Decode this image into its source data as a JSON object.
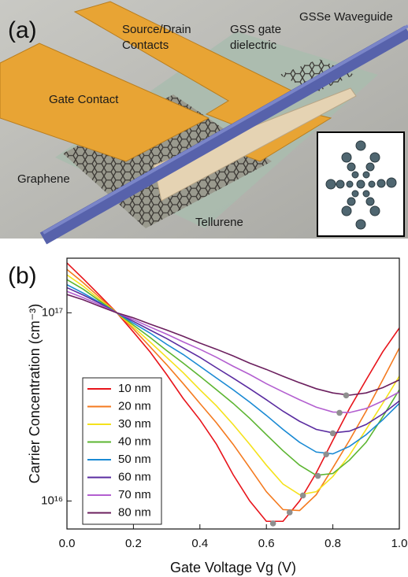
{
  "panel_a": {
    "label": "(a)",
    "source_drain": [
      "Source/Drain",
      "Contacts"
    ],
    "dielectric": [
      "GSS gate",
      "dielectric"
    ],
    "waveguide": "GSSe Waveguide",
    "gate_contact": "Gate Contact",
    "graphene": "Graphene",
    "tellurene": "Tellurene"
  },
  "chart_data": {
    "type": "line",
    "panel_label": "(b)",
    "x_label": "Gate Voltage Vg (V)",
    "y_label": "Carrier Concentration (cm⁻³)",
    "log_y": true,
    "xlim": [
      0,
      1
    ],
    "ylim": [
      7100000000000000.0,
      1.95e+17
    ],
    "xticks": [
      {
        "value": 0,
        "label": "0.0"
      },
      0.2,
      0.4,
      0.6,
      0.8,
      {
        "value": 1,
        "label": "1.0"
      }
    ],
    "yticks": [
      {
        "value": 1e+16,
        "label": "10¹⁶"
      },
      {
        "value": 1e+17,
        "label": "10¹⁷"
      }
    ],
    "x": [
      0,
      0.05,
      0.1,
      0.15,
      0.2,
      0.25,
      0.3,
      0.35,
      0.4,
      0.45,
      0.5,
      0.55,
      0.6,
      0.65,
      0.7,
      0.75,
      0.8,
      0.85,
      0.9,
      0.95,
      1
    ],
    "series": [
      {
        "name": "10 nm",
        "color": "#e8141b",
        "values": [
          1.84e+17,
          1.51e+17,
          1.23e+17,
          1e+17,
          7.9e+16,
          6.2e+16,
          4.7e+16,
          3.5e+16,
          2.7e+16,
          2e+16,
          1.38e+16,
          1e+16,
          7800000000000000.0,
          7800000000000000.0,
          1e+16,
          1.41e+16,
          2.1e+16,
          3.1e+16,
          4.4e+16,
          6.2e+16,
          8.3e+16
        ]
      },
      {
        "name": "20 nm",
        "color": "#f47a1f",
        "values": [
          1.7e+17,
          1.44e+17,
          1.2e+17,
          1e+17,
          8.2e+16,
          6.6e+16,
          5.3e+16,
          4.2e+16,
          3.3e+16,
          2.6e+16,
          2e+16,
          1.5e+16,
          1.12e+16,
          9000000000000000.0,
          8900000000000000.0,
          1.08e+16,
          1.5e+16,
          2.1e+16,
          3e+16,
          4.4e+16,
          6.5e+16
        ]
      },
      {
        "name": "30 nm",
        "color": "#f5e21c",
        "values": [
          1.59e+17,
          1.38e+17,
          1.17e+17,
          1e+17,
          8.4e+16,
          7e+16,
          5.8e+16,
          4.8e+16,
          3.9e+16,
          3.2e+16,
          2.55e+16,
          2e+16,
          1.55e+16,
          1.23e+16,
          1.08e+16,
          1.12e+16,
          1.35e+16,
          1.75e+16,
          2.4e+16,
          3.3e+16,
          4.6e+16
        ]
      },
      {
        "name": "40 nm",
        "color": "#5cb531",
        "values": [
          1.5e+17,
          1.33e+17,
          1.15e+17,
          1e+17,
          8.6e+16,
          7.4e+16,
          6.3e+16,
          5.4e+16,
          4.6e+16,
          3.9e+16,
          3.3e+16,
          2.75e+16,
          2.25e+16,
          1.85e+16,
          1.55e+16,
          1.37e+16,
          1.4e+16,
          1.65e+16,
          2.05e+16,
          2.8e+16,
          3.9e+16
        ]
      },
      {
        "name": "50 nm",
        "color": "#1a8ad4",
        "values": [
          1.41e+17,
          1.27e+17,
          1.13e+17,
          1e+17,
          8.8e+16,
          7.8e+16,
          6.8e+16,
          6e+16,
          5.2e+16,
          4.5e+16,
          3.9e+16,
          3.35e+16,
          2.85e+16,
          2.4e+16,
          2.05e+16,
          1.82e+16,
          1.78e+16,
          1.95e+16,
          2.25e+16,
          2.7e+16,
          3.3e+16
        ]
      },
      {
        "name": "60 nm",
        "color": "#5a2ca0",
        "values": [
          1.36e+17,
          1.24e+17,
          1.12e+17,
          1e+17,
          9e+16,
          8.1e+16,
          7.3e+16,
          6.5e+16,
          5.8e+16,
          5.1e+16,
          4.5e+16,
          3.95e+16,
          3.45e+16,
          3e+16,
          2.65e+16,
          2.4e+16,
          2.3e+16,
          2.35e+16,
          2.55e+16,
          2.9e+16,
          3.4e+16
        ]
      },
      {
        "name": "70 nm",
        "color": "#b35fd0",
        "values": [
          1.3e+17,
          1.2e+17,
          1.1e+17,
          1e+17,
          9.2e+16,
          8.4e+16,
          7.7e+16,
          7e+16,
          6.4e+16,
          5.8e+16,
          5.2e+16,
          4.7e+16,
          4.2e+16,
          3.8e+16,
          3.45e+16,
          3.15e+16,
          2.97e+16,
          2.95e+16,
          3.1e+16,
          3.4e+16,
          3.8e+16
        ]
      },
      {
        "name": "80 nm",
        "color": "#6b1f5e",
        "values": [
          1.25e+17,
          1.17e+17,
          1.08e+17,
          1e+17,
          9.4e+16,
          8.7e+16,
          8.1e+16,
          7.5e+16,
          6.9e+16,
          6.4e+16,
          5.9e+16,
          5.4e+16,
          5e+16,
          4.6e+16,
          4.25e+16,
          3.95e+16,
          3.75e+16,
          3.65e+16,
          3.75e+16,
          4e+16,
          4.4e+16
        ]
      }
    ],
    "minima": {
      "color": "#8f8f8f",
      "x": [
        0.62,
        0.67,
        0.71,
        0.755,
        0.78,
        0.8,
        0.82,
        0.84
      ],
      "values": [
        7600000000000000.0,
        8700000000000000.0,
        1.07e+16,
        1.36e+16,
        1.77e+16,
        2.29e+16,
        2.94e+16,
        3.64e+16
      ]
    }
  }
}
